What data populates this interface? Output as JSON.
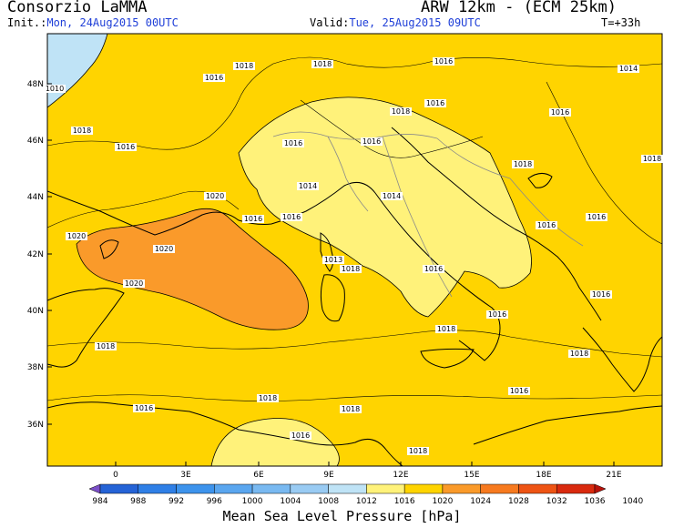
{
  "header": {
    "organization": "Consorzio LaMMA",
    "model": "ARW 12km - (ECM 25km)",
    "init_label": "Init.:",
    "init_value": "Mon, 24Aug2015 00UTC",
    "valid_label": "Valid:",
    "valid_value": "Tue, 25Aug2015 09UTC",
    "lead_time": "T=+33h"
  },
  "map": {
    "lat_ticks": [
      "48N",
      "46N",
      "44N",
      "42N",
      "40N",
      "38N",
      "36N"
    ],
    "lon_ticks": [
      "0",
      "3E",
      "6E",
      "9E",
      "12E",
      "15E",
      "18E",
      "21E"
    ],
    "isobar_labels": [
      "1010",
      "1018",
      "1018",
      "1016",
      "1016",
      "1014",
      "1018",
      "1016",
      "1016",
      "1016",
      "1018",
      "1016",
      "1016",
      "1014",
      "1014",
      "1018",
      "1016",
      "1016",
      "1020",
      "1020",
      "1016",
      "1016",
      "1020",
      "1013",
      "1018",
      "1016",
      "1018",
      "1016",
      "1020",
      "1016",
      "1018",
      "1018",
      "1018",
      "1018",
      "1018",
      "1016",
      "1016",
      "1016",
      "1018"
    ]
  },
  "colorbar": {
    "levels": [
      "984",
      "988",
      "992",
      "996",
      "1000",
      "1004",
      "1008",
      "1012",
      "1016",
      "1020",
      "1024",
      "1028",
      "1032",
      "1036",
      "1040"
    ],
    "colors": [
      "#7b4fc8",
      "#2563d6",
      "#2f7fe6",
      "#3d93ec",
      "#5aa6ef",
      "#79b9f1",
      "#99cbf3",
      "#bfe3f6",
      "#fff27a",
      "#ffd400",
      "#fa9a2a",
      "#f77a1f",
      "#ee5414",
      "#d92a0e",
      "#b8120a"
    ],
    "title": "Mean Sea Level Pressure [hPa]"
  }
}
